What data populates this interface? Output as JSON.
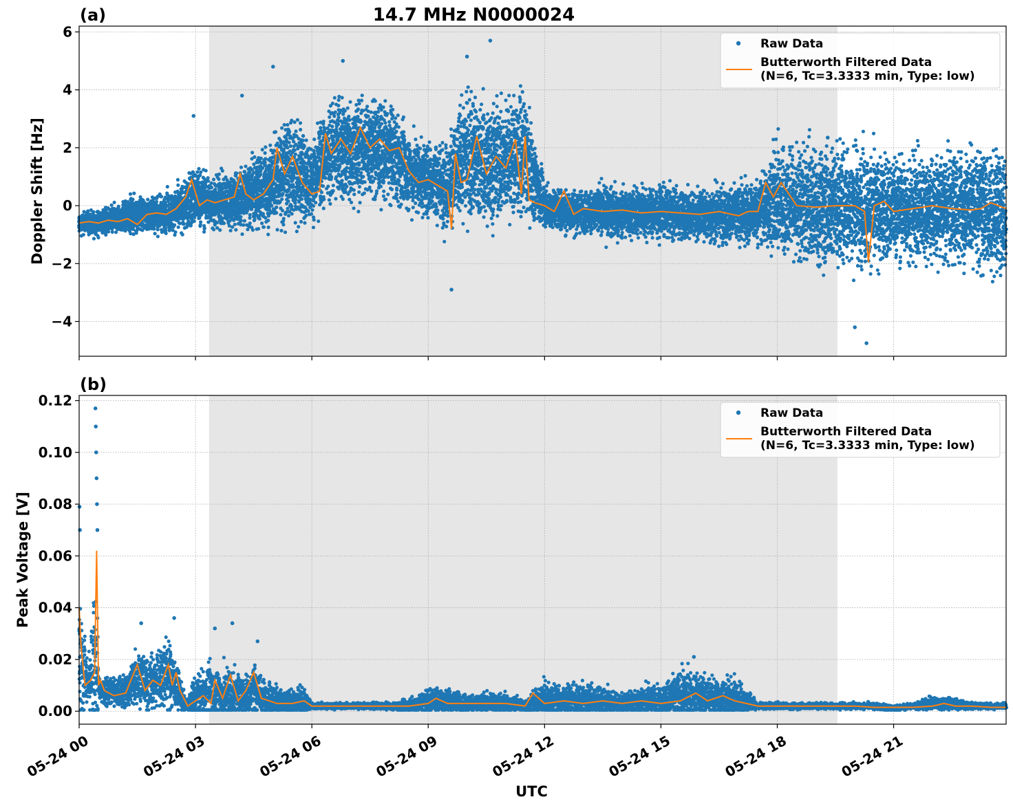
{
  "figure": {
    "title": "14.7 MHz N0000024",
    "shared_xlabel": "UTC"
  },
  "colors": {
    "raw": "#1f77b4",
    "filtered": "#ff7f0e",
    "shade": "#e6e6e6",
    "grid": "#b0b0b0"
  },
  "chart_data": [
    {
      "type": "scatter",
      "panel_label": "(a)",
      "title": "14.7 MHz N0000024",
      "xlabel": "",
      "ylabel": "Doppler Shift [Hz]",
      "x_unit": "hours UTC from 05-24 00:00",
      "xlim": [
        0,
        23.9
      ],
      "ylim": [
        -5.2,
        6.2
      ],
      "yticks": [
        -4,
        -2,
        0,
        2,
        4,
        6
      ],
      "ytick_labels": [
        "−4",
        "−2",
        "0",
        "2",
        "4",
        "6"
      ],
      "xticks": [
        0,
        3,
        6,
        9,
        12,
        15,
        18,
        21
      ],
      "xtick_labels": [],
      "grid": true,
      "legend_position": "top-right",
      "shaded_span": [
        3.35,
        19.55
      ],
      "series": [
        {
          "name": "Raw Data",
          "kind": "points",
          "x": [
            0,
            0.5,
            1,
            1.5,
            2,
            2.5,
            3,
            3.5,
            4,
            4.5,
            5,
            5.5,
            6,
            6.5,
            7,
            7.5,
            8,
            8.5,
            9,
            9.5,
            10,
            10.5,
            11,
            11.5,
            12,
            12.5,
            13,
            13.5,
            14,
            14.5,
            15,
            15.5,
            16,
            16.5,
            17,
            17.5,
            18,
            18.5,
            19,
            19.5,
            20,
            20.5,
            21,
            21.5,
            22,
            22.5,
            23,
            23.5
          ],
          "center": [
            -0.6,
            -0.6,
            -0.45,
            -0.3,
            -0.3,
            -0.2,
            0.3,
            0.1,
            0.2,
            0.4,
            0.8,
            1.3,
            0.8,
            2.0,
            1.9,
            2.0,
            1.8,
            1.2,
            0.9,
            0.7,
            1.8,
            1.4,
            1.6,
            1.7,
            0.0,
            -0.2,
            -0.2,
            -0.2,
            -0.3,
            -0.2,
            -0.2,
            -0.3,
            -0.3,
            -0.3,
            -0.3,
            -0.2,
            0.3,
            0.0,
            0.0,
            0.0,
            0.0,
            -0.2,
            -0.1,
            -0.1,
            -0.1,
            -0.1,
            0.0,
            -0.2
          ],
          "spread": [
            0.3,
            0.35,
            0.4,
            0.5,
            0.5,
            0.6,
            0.9,
            0.7,
            0.8,
            1.0,
            1.3,
            1.6,
            1.0,
            1.6,
            1.5,
            1.4,
            1.4,
            1.1,
            1.1,
            1.2,
            1.8,
            1.7,
            1.7,
            1.6,
            0.6,
            0.6,
            0.6,
            0.7,
            0.7,
            0.7,
            0.7,
            0.7,
            0.7,
            0.8,
            0.8,
            0.9,
            1.5,
            1.6,
            1.6,
            1.7,
            1.7,
            1.6,
            1.5,
            1.5,
            1.5,
            1.6,
            1.7,
            1.7
          ],
          "extremes": [
            {
              "x": 2.95,
              "y": 3.1
            },
            {
              "x": 4.2,
              "y": 3.8
            },
            {
              "x": 5.0,
              "y": 4.8
            },
            {
              "x": 6.8,
              "y": 5.0
            },
            {
              "x": 10.6,
              "y": 5.7
            },
            {
              "x": 10.0,
              "y": 5.15
            },
            {
              "x": 9.6,
              "y": -2.9
            },
            {
              "x": 20.3,
              "y": -4.75
            },
            {
              "x": 20.0,
              "y": -4.2
            },
            {
              "x": 19.3,
              "y": 2.35
            },
            {
              "x": 23.3,
              "y": -2.4
            }
          ]
        },
        {
          "name": "Butterworth Filtered Data\n(N=6, Tc=3.3333 min, Type: low)",
          "kind": "line",
          "x": [
            0,
            0.25,
            0.5,
            0.75,
            1,
            1.25,
            1.5,
            1.75,
            2,
            2.25,
            2.5,
            2.75,
            2.9,
            3.1,
            3.3,
            3.5,
            3.75,
            4,
            4.15,
            4.3,
            4.5,
            4.75,
            5,
            5.1,
            5.3,
            5.5,
            5.75,
            6,
            6.2,
            6.35,
            6.5,
            6.75,
            7,
            7.25,
            7.5,
            7.75,
            8,
            8.25,
            8.5,
            8.75,
            9,
            9.25,
            9.5,
            9.6,
            9.7,
            9.85,
            10,
            10.25,
            10.5,
            10.75,
            11,
            11.25,
            11.4,
            11.5,
            11.6,
            11.75,
            12,
            12.25,
            12.5,
            12.75,
            13,
            13.5,
            14,
            14.5,
            15,
            15.5,
            16,
            16.5,
            17,
            17.25,
            17.5,
            17.7,
            17.9,
            18.1,
            18.3,
            18.5,
            19,
            19.5,
            20,
            20.25,
            20.35,
            20.5,
            20.75,
            21,
            21.5,
            22,
            22.5,
            23,
            23.25,
            23.5,
            23.9
          ],
          "y": [
            -0.6,
            -0.55,
            -0.6,
            -0.5,
            -0.55,
            -0.45,
            -0.65,
            -0.3,
            -0.25,
            -0.3,
            -0.1,
            0.3,
            0.9,
            0.0,
            0.2,
            0.1,
            0.2,
            0.3,
            1.1,
            0.4,
            0.2,
            0.4,
            0.9,
            2.0,
            1.1,
            1.7,
            0.8,
            0.4,
            0.5,
            2.5,
            1.8,
            2.3,
            1.8,
            2.7,
            2.0,
            2.3,
            1.9,
            2.0,
            1.2,
            0.8,
            0.9,
            0.7,
            0.5,
            -0.8,
            1.8,
            0.8,
            0.9,
            2.4,
            1.1,
            1.7,
            1.3,
            2.3,
            0.4,
            2.4,
            0.2,
            0.1,
            0.0,
            -0.2,
            0.5,
            -0.3,
            -0.1,
            -0.2,
            -0.15,
            -0.25,
            -0.2,
            -0.25,
            -0.3,
            -0.2,
            -0.35,
            -0.2,
            -0.2,
            0.8,
            0.3,
            0.8,
            0.4,
            0.0,
            -0.05,
            0.0,
            0.0,
            -0.2,
            -1.95,
            0.0,
            0.15,
            -0.2,
            -0.1,
            0.0,
            -0.1,
            -0.15,
            -0.1,
            0.1,
            -0.1
          ]
        }
      ]
    },
    {
      "type": "scatter",
      "panel_label": "(b)",
      "title": "",
      "xlabel": "UTC",
      "ylabel": "Peak Voltage [V]",
      "x_unit": "hours UTC from 05-24 00:00",
      "xlim": [
        0,
        23.9
      ],
      "ylim": [
        -0.005,
        0.122
      ],
      "yticks": [
        0.0,
        0.02,
        0.04,
        0.06,
        0.08,
        0.1,
        0.12
      ],
      "ytick_labels": [
        "0.00",
        "0.02",
        "0.04",
        "0.06",
        "0.08",
        "0.10",
        "0.12"
      ],
      "xticks": [
        0,
        3,
        6,
        9,
        12,
        15,
        18,
        21
      ],
      "xtick_labels": [
        "05-24 00",
        "05-24 03",
        "05-24 06",
        "05-24 09",
        "05-24 12",
        "05-24 15",
        "05-24 18",
        "05-24 21"
      ],
      "grid": true,
      "legend_position": "top-right",
      "shaded_span": [
        3.35,
        19.55
      ],
      "series": [
        {
          "name": "Raw Data",
          "kind": "points",
          "x": [
            0,
            0.25,
            0.45,
            0.5,
            0.75,
            1,
            1.25,
            1.5,
            1.75,
            2,
            2.25,
            2.5,
            2.75,
            3,
            3.25,
            3.5,
            3.75,
            4,
            4.25,
            4.5,
            4.75,
            5,
            5.25,
            5.5,
            5.75,
            6,
            6.5,
            7,
            7.5,
            8,
            8.5,
            9,
            9.5,
            10,
            10.5,
            11,
            11.5,
            12,
            12.5,
            13,
            13.5,
            14,
            14.5,
            15,
            15.5,
            16,
            16.5,
            17,
            17.5,
            18,
            18.5,
            19,
            19.5,
            20,
            20.5,
            21,
            21.5,
            22,
            22.5,
            23,
            23.5
          ],
          "center": [
            0.02,
            0.01,
            0.02,
            0.008,
            0.008,
            0.007,
            0.008,
            0.015,
            0.01,
            0.012,
            0.015,
            0.01,
            0.002,
            0.004,
            0.006,
            0.007,
            0.006,
            0.007,
            0.005,
            0.008,
            0.005,
            0.004,
            0.003,
            0.003,
            0.004,
            0.002,
            0.002,
            0.002,
            0.002,
            0.002,
            0.002,
            0.004,
            0.004,
            0.003,
            0.003,
            0.003,
            0.002,
            0.005,
            0.004,
            0.004,
            0.004,
            0.003,
            0.004,
            0.004,
            0.006,
            0.006,
            0.005,
            0.005,
            0.002,
            0.002,
            0.002,
            0.002,
            0.002,
            0.002,
            0.002,
            0.001,
            0.002,
            0.003,
            0.003,
            0.002,
            0.002
          ],
          "spread": [
            0.02,
            0.008,
            0.03,
            0.006,
            0.005,
            0.005,
            0.006,
            0.01,
            0.008,
            0.01,
            0.012,
            0.008,
            0.002,
            0.008,
            0.01,
            0.009,
            0.01,
            0.009,
            0.006,
            0.01,
            0.006,
            0.006,
            0.004,
            0.004,
            0.005,
            0.001,
            0.001,
            0.001,
            0.001,
            0.001,
            0.002,
            0.004,
            0.004,
            0.003,
            0.003,
            0.003,
            0.002,
            0.006,
            0.005,
            0.005,
            0.005,
            0.003,
            0.005,
            0.005,
            0.008,
            0.008,
            0.006,
            0.006,
            0.001,
            0.001,
            0.001,
            0.001,
            0.001,
            0.001,
            0.001,
            0.001,
            0.001,
            0.002,
            0.002,
            0.001,
            0.001
          ],
          "extremes": [
            {
              "x": 0.01,
              "y": 0.079
            },
            {
              "x": 0.02,
              "y": 0.07
            },
            {
              "x": 0.42,
              "y": 0.117
            },
            {
              "x": 0.43,
              "y": 0.11
            },
            {
              "x": 0.44,
              "y": 0.1
            },
            {
              "x": 0.45,
              "y": 0.09
            },
            {
              "x": 0.46,
              "y": 0.08
            },
            {
              "x": 0.47,
              "y": 0.07
            },
            {
              "x": 2.45,
              "y": 0.036
            },
            {
              "x": 1.6,
              "y": 0.034
            },
            {
              "x": 3.5,
              "y": 0.032
            },
            {
              "x": 3.95,
              "y": 0.034
            },
            {
              "x": 4.6,
              "y": 0.027
            },
            {
              "x": 15.85,
              "y": 0.021
            }
          ]
        },
        {
          "name": "Butterworth Filtered Data\n(N=6, Tc=3.3333 min, Type: low)",
          "kind": "line",
          "x": [
            0,
            0.05,
            0.15,
            0.3,
            0.4,
            0.45,
            0.5,
            0.55,
            0.65,
            0.9,
            1.2,
            1.5,
            1.7,
            1.9,
            2.1,
            2.3,
            2.4,
            2.5,
            2.6,
            2.8,
            3.0,
            3.2,
            3.4,
            3.5,
            3.7,
            3.9,
            4.1,
            4.3,
            4.5,
            4.7,
            4.9,
            5.1,
            5.5,
            5.8,
            6.0,
            6.5,
            7,
            7.5,
            8,
            8.5,
            9,
            9.2,
            9.5,
            10,
            10.5,
            11,
            11.5,
            11.7,
            12,
            12.5,
            13,
            13.5,
            14,
            14.5,
            15,
            15.5,
            15.9,
            16.2,
            16.6,
            16.9,
            17.2,
            17.5,
            18,
            18.5,
            19,
            19.5,
            20,
            20.5,
            21,
            21.5,
            22,
            22.3,
            22.6,
            23,
            23.5,
            23.9
          ],
          "y": [
            0.04,
            0.025,
            0.01,
            0.012,
            0.015,
            0.062,
            0.01,
            0.012,
            0.008,
            0.006,
            0.007,
            0.018,
            0.008,
            0.012,
            0.01,
            0.018,
            0.01,
            0.015,
            0.008,
            0.002,
            0.004,
            0.006,
            0.003,
            0.012,
            0.005,
            0.014,
            0.004,
            0.008,
            0.015,
            0.005,
            0.004,
            0.003,
            0.003,
            0.004,
            0.002,
            0.002,
            0.002,
            0.002,
            0.002,
            0.002,
            0.003,
            0.005,
            0.003,
            0.003,
            0.003,
            0.003,
            0.002,
            0.007,
            0.003,
            0.004,
            0.003,
            0.004,
            0.003,
            0.004,
            0.003,
            0.004,
            0.007,
            0.004,
            0.006,
            0.004,
            0.003,
            0.002,
            0.002,
            0.002,
            0.002,
            0.002,
            0.002,
            0.0015,
            0.0015,
            0.0015,
            0.002,
            0.003,
            0.002,
            0.002,
            0.0015,
            0.0015
          ]
        }
      ]
    }
  ]
}
